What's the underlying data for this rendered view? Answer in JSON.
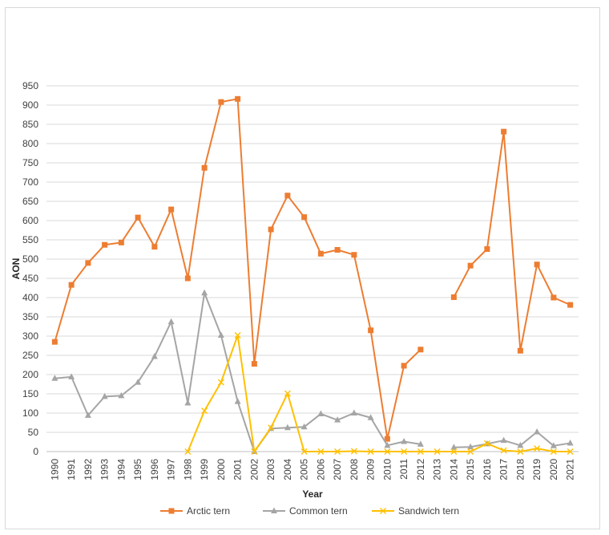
{
  "chart_data": {
    "type": "line",
    "xlabel": "Year",
    "ylabel": "AON",
    "ylim": [
      0,
      950
    ],
    "y_ticks": [
      0,
      50,
      100,
      150,
      200,
      250,
      300,
      350,
      400,
      450,
      500,
      550,
      600,
      650,
      700,
      750,
      800,
      850,
      900,
      950
    ],
    "grid": true,
    "legend_position": "bottom",
    "categories": [
      "1990",
      "1991",
      "1992",
      "1993",
      "1994",
      "1995",
      "1996",
      "1997",
      "1998",
      "1999",
      "2000",
      "2001",
      "2002",
      "2003",
      "2004",
      "2005",
      "2006",
      "2007",
      "2008",
      "2009",
      "2010",
      "2011",
      "2012",
      "2013",
      "2014",
      "2015",
      "2016",
      "2017",
      "2018",
      "2019",
      "2020",
      "2021"
    ],
    "series": [
      {
        "name": "Arctic tern",
        "color": "#ED7D31",
        "marker": "square",
        "values": [
          285,
          433,
          490,
          537,
          543,
          608,
          532,
          629,
          450,
          737,
          908,
          916,
          228,
          577,
          665,
          609,
          514,
          524,
          511,
          315,
          33,
          223,
          265,
          null,
          401,
          483,
          526,
          831,
          262,
          486,
          400,
          381
        ]
      },
      {
        "name": "Common tern",
        "color": "#A5A5A5",
        "marker": "triangle",
        "values": [
          190,
          194,
          94,
          143,
          145,
          180,
          247,
          337,
          126,
          412,
          302,
          130,
          0,
          60,
          62,
          64,
          98,
          82,
          100,
          88,
          16,
          26,
          19,
          null,
          11,
          12,
          20,
          29,
          16,
          51,
          15,
          22
        ]
      },
      {
        "name": "Sandwich tern",
        "color": "#FFC000",
        "marker": "x",
        "values": [
          null,
          null,
          null,
          null,
          null,
          null,
          null,
          null,
          0,
          106,
          180,
          302,
          0,
          62,
          151,
          0,
          0,
          0,
          1,
          0,
          0,
          0,
          0,
          0,
          0,
          0,
          21,
          3,
          0,
          8,
          0,
          0
        ]
      }
    ]
  }
}
